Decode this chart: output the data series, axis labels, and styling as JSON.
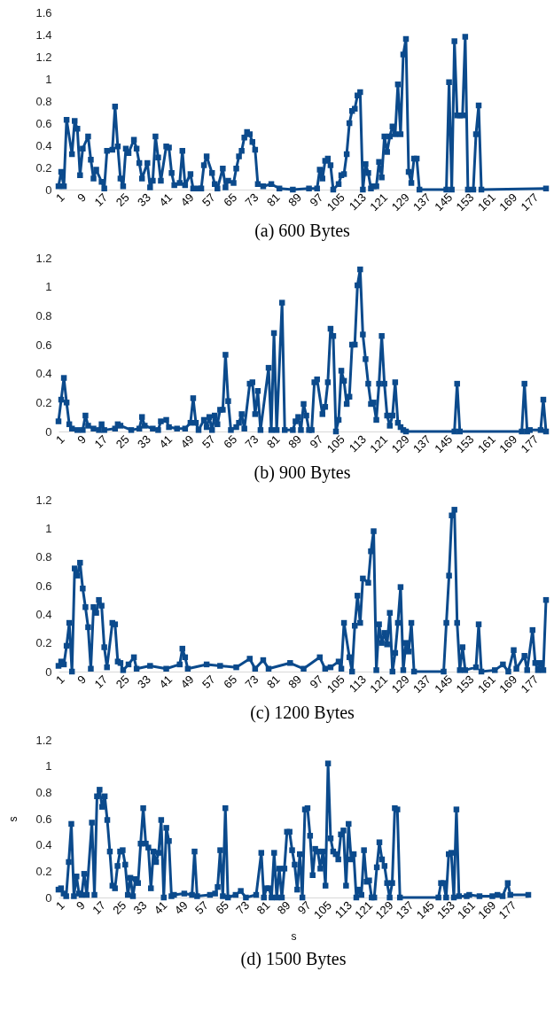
{
  "chart_data": [
    {
      "type": "line",
      "title": "(a) 600 Bytes",
      "color": "#0b4a8c",
      "marker": "square",
      "xlim": [
        1,
        182
      ],
      "xticks": [
        1,
        9,
        17,
        25,
        33,
        41,
        49,
        57,
        65,
        73,
        81,
        89,
        97,
        105,
        113,
        121,
        129,
        137,
        145,
        153,
        161,
        169,
        177
      ],
      "ylim": [
        0,
        1.6
      ],
      "yticks": [
        0,
        0.2,
        0.4,
        0.6,
        0.8,
        1,
        1.2,
        1.4,
        1.6
      ],
      "x": [
        1,
        2,
        3,
        4,
        6,
        7,
        8,
        9,
        10,
        12,
        13,
        14,
        15,
        17,
        18,
        19,
        21,
        22,
        23,
        24,
        25,
        26,
        27,
        29,
        30,
        31,
        32,
        34,
        35,
        36,
        37,
        38,
        39,
        41,
        42,
        43,
        44,
        46,
        47,
        48,
        50,
        51,
        53,
        54,
        55,
        56,
        58,
        59,
        60,
        62,
        63,
        64,
        66,
        67,
        68,
        69,
        70,
        71,
        72,
        73,
        74,
        75,
        77,
        80,
        83,
        88,
        94,
        97,
        98,
        99,
        100,
        101,
        102,
        103,
        105,
        106,
        107,
        108,
        109,
        110,
        111,
        112,
        113,
        114,
        115,
        116,
        117,
        118,
        119,
        120,
        121,
        122,
        123,
        124,
        125,
        126,
        127,
        128,
        129,
        130,
        131,
        132,
        133,
        134,
        135,
        145,
        146,
        147,
        148,
        149,
        150,
        151,
        152,
        153,
        155,
        156,
        157,
        158,
        182
      ],
      "values": [
        0.03,
        0.16,
        0.03,
        0.63,
        0.32,
        0.62,
        0.55,
        0.13,
        0.37,
        0.48,
        0.27,
        0.1,
        0.18,
        0.07,
        0.01,
        0.35,
        0.36,
        0.75,
        0.39,
        0.1,
        0.03,
        0.37,
        0.33,
        0.45,
        0.37,
        0.24,
        0.1,
        0.24,
        0.02,
        0.08,
        0.48,
        0.29,
        0.08,
        0.39,
        0.38,
        0.15,
        0.04,
        0.06,
        0.35,
        0.04,
        0.14,
        0.01,
        0.01,
        0.01,
        0.22,
        0.3,
        0.15,
        0.05,
        0.01,
        0.19,
        0.02,
        0.08,
        0.06,
        0.19,
        0.3,
        0.35,
        0.47,
        0.52,
        0.5,
        0.43,
        0.36,
        0.05,
        0.03,
        0.05,
        0.01,
        0,
        0.01,
        0.01,
        0.18,
        0.1,
        0.26,
        0.28,
        0.22,
        0,
        0.05,
        0.13,
        0.14,
        0.32,
        0.6,
        0.71,
        0.73,
        0.85,
        0.88,
        0,
        0.23,
        0.15,
        0.01,
        0.03,
        0.03,
        0.25,
        0.11,
        0.48,
        0.34,
        0.48,
        0.57,
        0.5,
        0.95,
        0.5,
        1.22,
        1.36,
        0.16,
        0.06,
        0.28,
        0.28,
        0,
        0,
        0.97,
        0,
        1.34,
        0.67,
        0.67,
        0.67,
        1.38,
        0,
        0,
        0.5,
        0.76,
        0,
        0.01
      ]
    },
    {
      "type": "line",
      "title": "(b) 900 Bytes",
      "color": "#0b4a8c",
      "marker": "square",
      "xlim": [
        1,
        182
      ],
      "xticks": [
        1,
        9,
        17,
        25,
        33,
        41,
        49,
        57,
        65,
        73,
        81,
        89,
        97,
        105,
        113,
        121,
        129,
        137,
        145,
        153,
        161,
        169,
        177
      ],
      "ylim": [
        0,
        1.2
      ],
      "yticks": [
        0,
        0.2,
        0.4,
        0.6,
        0.8,
        1,
        1.2
      ],
      "x": [
        1,
        2,
        3,
        4,
        5,
        6,
        8,
        10,
        11,
        12,
        14,
        16,
        17,
        18,
        22,
        23,
        24,
        28,
        31,
        32,
        33,
        36,
        38,
        39,
        41,
        42,
        45,
        48,
        50,
        51,
        52,
        53,
        55,
        56,
        57,
        58,
        59,
        60,
        61,
        62,
        63,
        64,
        65,
        67,
        68,
        69,
        70,
        72,
        73,
        74,
        75,
        76,
        79,
        80,
        81,
        82,
        84,
        85,
        88,
        89,
        90,
        91,
        92,
        93,
        94,
        95,
        96,
        97,
        99,
        100,
        101,
        102,
        103,
        104,
        105,
        106,
        107,
        108,
        109,
        110,
        111,
        112,
        113,
        114,
        115,
        116,
        117,
        118,
        119,
        120,
        121,
        122,
        123,
        124,
        125,
        126,
        127,
        128,
        129,
        130,
        148,
        149,
        150,
        173,
        174,
        175,
        176,
        180,
        181,
        182
      ],
      "values": [
        0.07,
        0.22,
        0.37,
        0.2,
        0.05,
        0.02,
        0.01,
        0.01,
        0.11,
        0.04,
        0.02,
        0.01,
        0.05,
        0.01,
        0.02,
        0.05,
        0.04,
        0.01,
        0.02,
        0.1,
        0.04,
        0.02,
        0.01,
        0.07,
        0.08,
        0.03,
        0.02,
        0.02,
        0.06,
        0.23,
        0.06,
        0.01,
        0.08,
        0.03,
        0.1,
        0.01,
        0.11,
        0.05,
        0.15,
        0.15,
        0.53,
        0.21,
        0.01,
        0.03,
        0.06,
        0.12,
        0.02,
        0.33,
        0.34,
        0.12,
        0.28,
        0.01,
        0.44,
        0.01,
        0.68,
        0.01,
        0.89,
        0.01,
        0.01,
        0.07,
        0.1,
        0.01,
        0.19,
        0.11,
        0.01,
        0.01,
        0.34,
        0.36,
        0.12,
        0.17,
        0.34,
        0.71,
        0.66,
        0,
        0.08,
        0.42,
        0.35,
        0.19,
        0.24,
        0.6,
        0.6,
        1.01,
        1.12,
        0.67,
        0.5,
        0.33,
        0.19,
        0.2,
        0.08,
        0.33,
        0.66,
        0.33,
        0.11,
        0.04,
        0.11,
        0.34,
        0.06,
        0.03,
        0.01,
        0,
        0,
        0.33,
        0,
        0,
        0.33,
        0,
        0.01,
        0.01,
        0.22,
        0
      ]
    },
    {
      "type": "line",
      "title": "(c) 1200 Bytes",
      "color": "#0b4a8c",
      "marker": "square",
      "xlim": [
        1,
        182
      ],
      "xticks": [
        1,
        9,
        17,
        25,
        33,
        41,
        49,
        57,
        65,
        73,
        81,
        89,
        97,
        105,
        113,
        121,
        129,
        137,
        145,
        153,
        161,
        169,
        177
      ],
      "ylim": [
        0,
        1.2
      ],
      "yticks": [
        0,
        0.2,
        0.4,
        0.6,
        0.8,
        1,
        1.2
      ],
      "x": [
        1,
        2,
        3,
        4,
        5,
        6,
        7,
        8,
        9,
        10,
        11,
        12,
        13,
        14,
        15,
        16,
        17,
        18,
        19,
        21,
        22,
        23,
        24,
        25,
        27,
        29,
        30,
        35,
        41,
        46,
        47,
        48,
        49,
        56,
        61,
        67,
        72,
        74,
        77,
        79,
        87,
        92,
        98,
        100,
        102,
        105,
        106,
        107,
        109,
        110,
        111,
        112,
        113,
        114,
        116,
        117,
        118,
        119,
        120,
        121,
        122,
        123,
        124,
        125,
        126,
        127,
        128,
        129,
        130,
        131,
        132,
        133,
        144,
        145,
        146,
        147,
        148,
        149,
        150,
        151,
        152,
        156,
        157,
        158,
        163,
        166,
        168,
        170,
        171,
        174,
        175,
        177,
        178,
        179,
        180,
        181,
        182
      ],
      "values": [
        0.04,
        0.07,
        0.05,
        0.18,
        0.34,
        0,
        0.72,
        0.67,
        0.76,
        0.58,
        0.45,
        0.31,
        0.02,
        0.45,
        0.41,
        0.5,
        0.46,
        0.17,
        0.03,
        0.34,
        0.33,
        0.07,
        0.06,
        0.01,
        0.05,
        0.1,
        0.02,
        0.04,
        0.02,
        0.05,
        0.16,
        0.1,
        0.02,
        0.05,
        0.04,
        0.03,
        0.09,
        0.02,
        0.08,
        0.02,
        0.06,
        0.02,
        0.1,
        0.02,
        0.03,
        0.07,
        0.02,
        0.34,
        0.1,
        0,
        0.32,
        0.53,
        0.34,
        0.65,
        0.62,
        0.84,
        0.98,
        0.01,
        0.33,
        0.2,
        0.27,
        0.19,
        0.41,
        0,
        0.13,
        0.34,
        0.59,
        0.01,
        0.2,
        0.14,
        0.34,
        0,
        0,
        0.34,
        0.67,
        1.09,
        1.13,
        0.34,
        0.01,
        0.17,
        0.01,
        0.03,
        0.33,
        0,
        0.01,
        0.05,
        0,
        0.15,
        0.02,
        0.11,
        0.01,
        0.29,
        0.06,
        0.01,
        0.06,
        0.01,
        0.5
      ]
    },
    {
      "type": "line",
      "title": "(d) 1500 Bytes",
      "xlabel": "s",
      "ylabel": "s",
      "color": "#0b4a8c",
      "marker": "square",
      "xlim": [
        1,
        184
      ],
      "xticks": [
        1,
        9,
        17,
        25,
        33,
        41,
        49,
        57,
        65,
        73,
        81,
        89,
        97,
        105,
        113,
        121,
        129,
        137,
        145,
        153,
        161,
        169,
        177
      ],
      "ylim": [
        0,
        1.2
      ],
      "yticks": [
        0,
        0.2,
        0.4,
        0.6,
        0.8,
        1,
        1.2
      ],
      "x": [
        1,
        2,
        3,
        4,
        5,
        6,
        7,
        8,
        9,
        10,
        11,
        12,
        14,
        15,
        16,
        17,
        18,
        19,
        20,
        21,
        22,
        23,
        24,
        25,
        26,
        27,
        28,
        29,
        30,
        31,
        32,
        33,
        34,
        35,
        36,
        37,
        38,
        39,
        40,
        41,
        42,
        43,
        44,
        45,
        46,
        50,
        53,
        54,
        55,
        60,
        62,
        63,
        64,
        65,
        66,
        67,
        70,
        72,
        74,
        78,
        80,
        81,
        82,
        83,
        84,
        85,
        86,
        87,
        88,
        89,
        90,
        91,
        92,
        93,
        94,
        95,
        96,
        97,
        98,
        99,
        100,
        101,
        102,
        103,
        104,
        105,
        106,
        107,
        108,
        109,
        110,
        111,
        112,
        113,
        114,
        115,
        116,
        117,
        118,
        119,
        120,
        121,
        122,
        123,
        124,
        125,
        126,
        127,
        128,
        129,
        130,
        131,
        132,
        133,
        134,
        149,
        150,
        151,
        152,
        153,
        154,
        155,
        156,
        157,
        160,
        161,
        165,
        170,
        172,
        174,
        176,
        177,
        184
      ],
      "values": [
        0.06,
        0.07,
        0.03,
        0.01,
        0.27,
        0.56,
        0.01,
        0.16,
        0.03,
        0.02,
        0.18,
        0.02,
        0.57,
        0.02,
        0.77,
        0.82,
        0.69,
        0.77,
        0.59,
        0.35,
        0.09,
        0.07,
        0.24,
        0.35,
        0.36,
        0.25,
        0.02,
        0.15,
        0.01,
        0.14,
        0.11,
        0.41,
        0.68,
        0.41,
        0.38,
        0.07,
        0.35,
        0.27,
        0.34,
        0.59,
        0,
        0.53,
        0.43,
        0.01,
        0.02,
        0.03,
        0.02,
        0.35,
        0.01,
        0.02,
        0.03,
        0.08,
        0.36,
        0.01,
        0.68,
        0,
        0.02,
        0.05,
        0,
        0.02,
        0.34,
        0,
        0.07,
        0.07,
        0,
        0.34,
        0,
        0.22,
        0,
        0.22,
        0.5,
        0.5,
        0.36,
        0.25,
        0.06,
        0.33,
        0,
        0.67,
        0.68,
        0.47,
        0.17,
        0.37,
        0.35,
        0.22,
        0.35,
        0.09,
        1.02,
        0.45,
        0.35,
        0.33,
        0.29,
        0.48,
        0.51,
        0.09,
        0.56,
        0.29,
        0.33,
        0,
        0.06,
        0.02,
        0.36,
        0.12,
        0.13,
        0,
        0,
        0.23,
        0.42,
        0.29,
        0.24,
        0.11,
        0,
        0.11,
        0.68,
        0.67,
        0,
        0,
        0.11,
        0.11,
        0,
        0.33,
        0.34,
        0,
        0.67,
        0.01,
        0.01,
        0.02,
        0.01,
        0.01,
        0.02,
        0.01,
        0.11,
        0.02,
        0.02
      ]
    }
  ]
}
